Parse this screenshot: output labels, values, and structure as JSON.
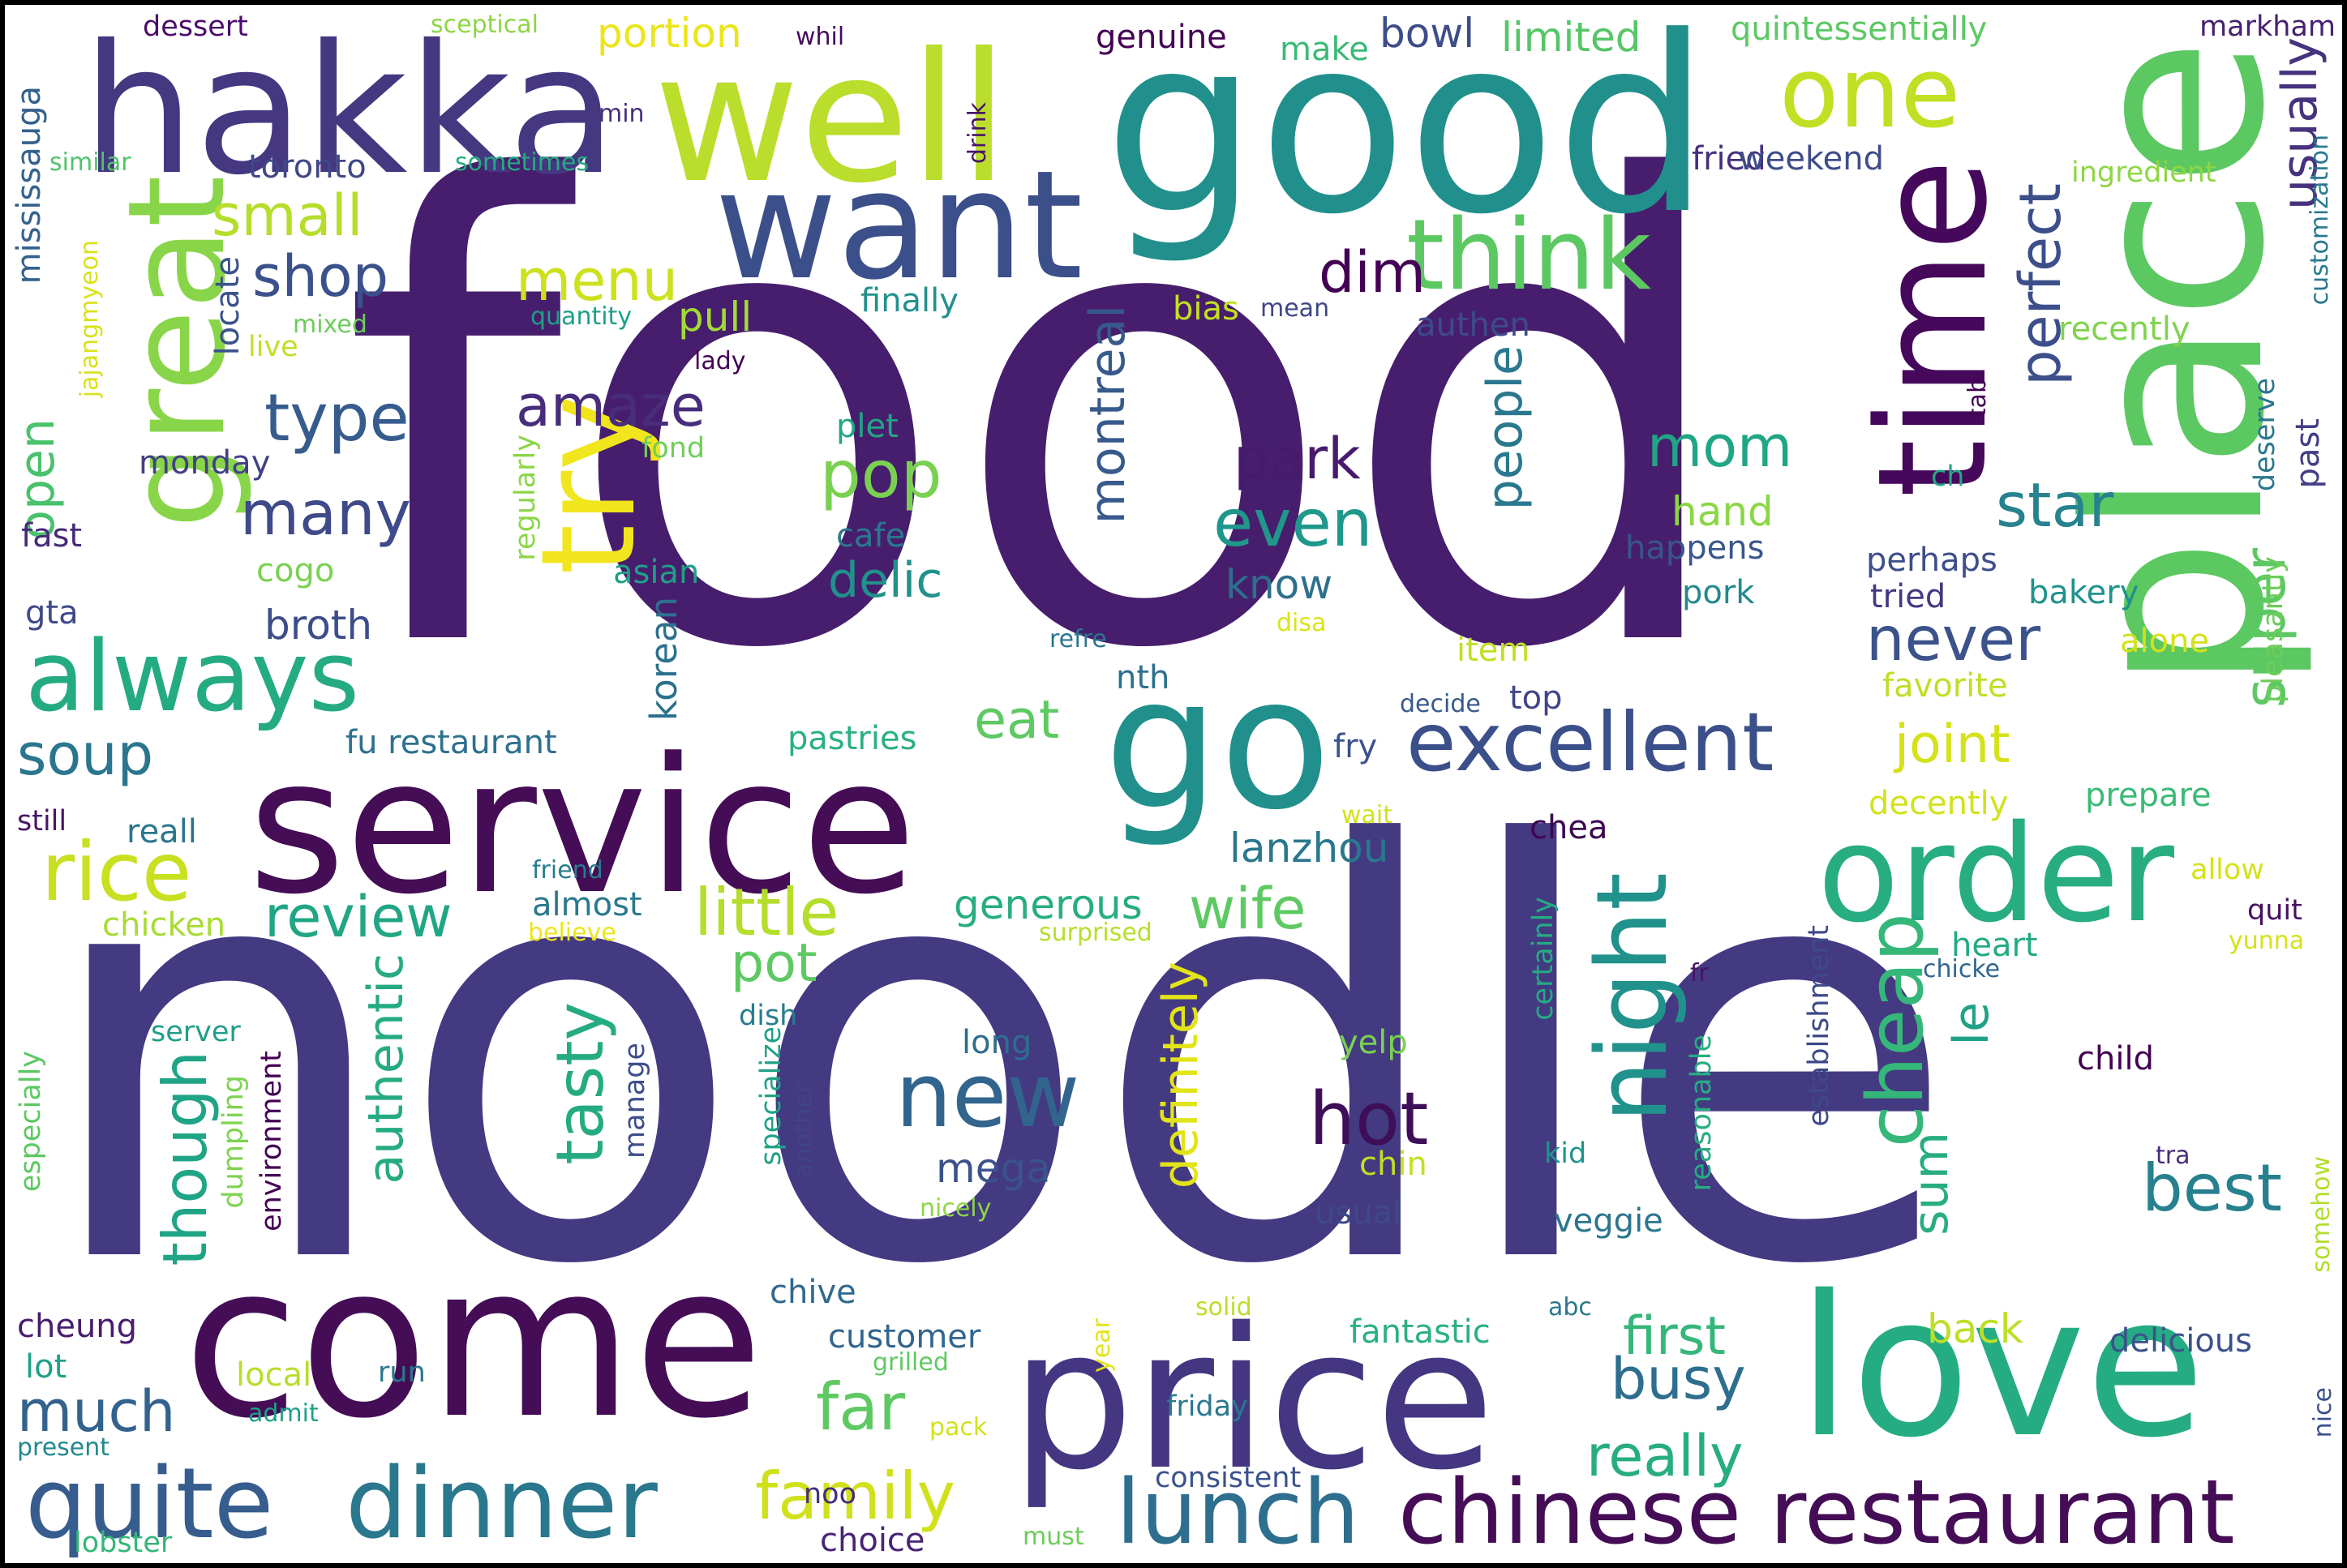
{
  "words": [
    {
      "text": "food",
      "color": "#471e6d"
    },
    {
      "text": "noodle",
      "color": "#433a82"
    },
    {
      "text": "good",
      "color": "#21908c"
    },
    {
      "text": "place",
      "color": "#5cc862"
    },
    {
      "text": "service",
      "color": "#440d56"
    },
    {
      "text": "come",
      "color": "#440d56"
    },
    {
      "text": "price",
      "color": "#453681"
    },
    {
      "text": "love",
      "color": "#25ac82"
    },
    {
      "text": "hakka",
      "color": "#453881"
    },
    {
      "text": "well",
      "color": "#bbde2c"
    },
    {
      "text": "want",
      "color": "#3b4f8a"
    },
    {
      "text": "go",
      "color": "#21908c"
    },
    {
      "text": "time",
      "color": "#45085b"
    },
    {
      "text": "order",
      "color": "#27ad81"
    },
    {
      "text": "great",
      "color": "#89d549"
    },
    {
      "text": "try",
      "color": "#f1e51d"
    },
    {
      "text": "dinner",
      "color": "#2a788e"
    },
    {
      "text": "quite",
      "color": "#365d8d"
    },
    {
      "text": "chinese restaurant",
      "color": "#440d56"
    },
    {
      "text": "night",
      "color": "#21918c"
    },
    {
      "text": "excellent",
      "color": "#3b4f8a"
    },
    {
      "text": "think",
      "color": "#5cc862"
    },
    {
      "text": "one",
      "color": "#c2df23"
    },
    {
      "text": "always",
      "color": "#25ab82"
    },
    {
      "text": "new",
      "color": "#32658e"
    },
    {
      "text": "lunch",
      "color": "#2e6e8e"
    },
    {
      "text": "rice",
      "color": "#c8e020"
    },
    {
      "text": "cheap",
      "color": "#35b779"
    },
    {
      "text": "hot",
      "color": "#3f0e58"
    },
    {
      "text": "best",
      "color": "#27808e"
    },
    {
      "text": "little",
      "color": "#b4dd2c"
    },
    {
      "text": "family",
      "color": "#d0e11c"
    },
    {
      "text": "really",
      "color": "#27ad81"
    },
    {
      "text": "busy",
      "color": "#2e6e8e"
    },
    {
      "text": "far",
      "color": "#5ec962"
    },
    {
      "text": "review",
      "color": "#21a685"
    },
    {
      "text": "wife",
      "color": "#5ec962"
    },
    {
      "text": "tasty",
      "color": "#25ab82"
    },
    {
      "text": "definitely",
      "color": "#e2e418"
    },
    {
      "text": "though",
      "color": "#20a486"
    },
    {
      "text": "authentic",
      "color": "#25ab82"
    },
    {
      "text": "much",
      "color": "#33638d"
    },
    {
      "text": "soup",
      "color": "#2a768e"
    },
    {
      "text": "small",
      "color": "#b5de2b"
    },
    {
      "text": "shop",
      "color": "#3b518b"
    },
    {
      "text": "type",
      "color": "#365c8d"
    },
    {
      "text": "many",
      "color": "#3e4a89"
    },
    {
      "text": "amaze",
      "color": "#472d7b"
    },
    {
      "text": "menu",
      "color": "#cde11d"
    },
    {
      "text": "pop",
      "color": "#7ad151"
    },
    {
      "text": "delic",
      "color": "#21918c"
    },
    {
      "text": "park",
      "color": "#481a6c"
    },
    {
      "text": "even",
      "color": "#1f988b"
    },
    {
      "text": "mom",
      "color": "#21a685"
    },
    {
      "text": "dim",
      "color": "#440154"
    },
    {
      "text": "star",
      "color": "#26828e"
    },
    {
      "text": "never",
      "color": "#3b528b"
    },
    {
      "text": "perfect",
      "color": "#3c4f8a"
    },
    {
      "text": "usually",
      "color": "#46327e"
    },
    {
      "text": "super",
      "color": "#5cc863"
    },
    {
      "text": "joint",
      "color": "#d5e21a"
    },
    {
      "text": "eat",
      "color": "#5ec962"
    },
    {
      "text": "pot",
      "color": "#5ec962"
    },
    {
      "text": "montreal",
      "color": "#38598c"
    },
    {
      "text": "people",
      "color": "#2a788e"
    },
    {
      "text": "first",
      "color": "#35b779"
    },
    {
      "text": "sum",
      "color": "#27ad81"
    },
    {
      "text": "le",
      "color": "#1fa287"
    },
    {
      "text": "mega",
      "color": "#3b528b"
    },
    {
      "text": "generous",
      "color": "#27ad81"
    },
    {
      "text": "korean",
      "color": "#2c718e"
    },
    {
      "text": "broth",
      "color": "#3d4d8a"
    },
    {
      "text": "open",
      "color": "#4ac16d"
    },
    {
      "text": "lanzhou",
      "color": "#2a778e"
    },
    {
      "text": "know",
      "color": "#2d708e"
    },
    {
      "text": "hand",
      "color": "#8bd646"
    },
    {
      "text": "back",
      "color": "#bddf26"
    },
    {
      "text": "pull",
      "color": "#a2da37"
    },
    {
      "text": "bowl",
      "color": "#3e4c8a"
    },
    {
      "text": "portion",
      "color": "#ece51b"
    },
    {
      "text": "limited",
      "color": "#55c667"
    },
    {
      "text": "genuine",
      "color": "#440154"
    },
    {
      "text": "fried",
      "color": "#472f7d"
    },
    {
      "text": "weekend",
      "color": "#3e4c8a"
    },
    {
      "text": "quintessentially",
      "color": "#5cc863"
    },
    {
      "text": "markham",
      "color": "#482071"
    },
    {
      "text": "dessert",
      "color": "#4b0c6b"
    },
    {
      "text": "sceptical",
      "color": "#8ed645"
    },
    {
      "text": "whil",
      "color": "#460b5e"
    },
    {
      "text": "make",
      "color": "#3aba76"
    },
    {
      "text": "toronto",
      "color": "#3f4788"
    },
    {
      "text": "sometimes",
      "color": "#25ab82"
    },
    {
      "text": "similar",
      "color": "#50c46a"
    },
    {
      "text": "min",
      "color": "#472f7d"
    },
    {
      "text": "drink",
      "color": "#481467"
    },
    {
      "text": "ingredient",
      "color": "#8ed645"
    },
    {
      "text": "mississauga",
      "color": "#34618d"
    },
    {
      "text": "customization",
      "color": "#29798e"
    },
    {
      "text": "recently",
      "color": "#7fd34e"
    },
    {
      "text": "tab",
      "color": "#440154"
    },
    {
      "text": "past",
      "color": "#433e85"
    },
    {
      "text": "deserve",
      "color": "#2a778e"
    },
    {
      "text": "jajangmyeon",
      "color": "#d8e219"
    },
    {
      "text": "mixed",
      "color": "#6ccd5a"
    },
    {
      "text": "live",
      "color": "#c0df25"
    },
    {
      "text": "locate",
      "color": "#3b528b"
    },
    {
      "text": "quantity",
      "color": "#1f9f88"
    },
    {
      "text": "finally",
      "color": "#21918c"
    },
    {
      "text": "bias",
      "color": "#c5e021"
    },
    {
      "text": "mean",
      "color": "#404688"
    },
    {
      "text": "authen",
      "color": "#3e4a89"
    },
    {
      "text": "lady",
      "color": "#440154"
    },
    {
      "text": "plet",
      "color": "#21a585"
    },
    {
      "text": "fond",
      "color": "#70cf57"
    },
    {
      "text": "regularly",
      "color": "#8bd646"
    },
    {
      "text": "monday",
      "color": "#424086"
    },
    {
      "text": "fast",
      "color": "#482979"
    },
    {
      "text": "cogo",
      "color": "#7ad151"
    },
    {
      "text": "gta",
      "color": "#3e4a89"
    },
    {
      "text": "cafe",
      "color": "#2a788e"
    },
    {
      "text": "asian",
      "color": "#1fa088"
    },
    {
      "text": "refre",
      "color": "#2b758e"
    },
    {
      "text": "disa",
      "color": "#dae319"
    },
    {
      "text": "nth",
      "color": "#2d708e"
    },
    {
      "text": "item",
      "color": "#c0df25"
    },
    {
      "text": "decide",
      "color": "#38598c"
    },
    {
      "text": "top",
      "color": "#404588"
    },
    {
      "text": "happens",
      "color": "#39568c"
    },
    {
      "text": "pork",
      "color": "#23898e"
    },
    {
      "text": "ch",
      "color": "#22a785"
    },
    {
      "text": "perhaps",
      "color": "#3d4e8a"
    },
    {
      "text": "tried",
      "color": "#453781"
    },
    {
      "text": "bakery",
      "color": "#20928c"
    },
    {
      "text": "alone",
      "color": "#d2e21b"
    },
    {
      "text": "favorite",
      "color": "#bddf26"
    },
    {
      "text": "pleasantly",
      "color": "#6ccd5a"
    },
    {
      "text": "fu restaurant",
      "color": "#2d718e"
    },
    {
      "text": "pastries",
      "color": "#2ab07f"
    },
    {
      "text": "fry",
      "color": "#3b528b"
    },
    {
      "text": "wait",
      "color": "#d2e21b"
    },
    {
      "text": "decently",
      "color": "#d2e21b"
    },
    {
      "text": "prepare",
      "color": "#3aba76"
    },
    {
      "text": "chea",
      "color": "#3e0751"
    },
    {
      "text": "still",
      "color": "#481467"
    },
    {
      "text": "reall",
      "color": "#2b748e"
    },
    {
      "text": "friend",
      "color": "#287c8e"
    },
    {
      "text": "almost",
      "color": "#2a788e"
    },
    {
      "text": "chicken",
      "color": "#a8db34"
    },
    {
      "text": "believe",
      "color": "#ece51b"
    },
    {
      "text": "surprised",
      "color": "#b8de29"
    },
    {
      "text": "allow",
      "color": "#d5e21a"
    },
    {
      "text": "quit",
      "color": "#471063"
    },
    {
      "text": "yunna",
      "color": "#d5e21a"
    },
    {
      "text": "heart",
      "color": "#24aa83"
    },
    {
      "text": "chicke",
      "color": "#31668e"
    },
    {
      "text": "fr",
      "color": "#471164"
    },
    {
      "text": "child",
      "color": "#440154"
    },
    {
      "text": "certainly",
      "color": "#25ab82"
    },
    {
      "text": "establishment",
      "color": "#3e4989"
    },
    {
      "text": "server",
      "color": "#1f9e89"
    },
    {
      "text": "especially",
      "color": "#5cc862"
    },
    {
      "text": "dumpling",
      "color": "#7ed34f"
    },
    {
      "text": "environment",
      "color": "#440154"
    },
    {
      "text": "manage",
      "color": "#3d4e8a"
    },
    {
      "text": "dish",
      "color": "#287c8e"
    },
    {
      "text": "specialize",
      "color": "#1fa287"
    },
    {
      "text": "another",
      "color": "#414487"
    },
    {
      "text": "long",
      "color": "#2e6e8e"
    },
    {
      "text": "yelp",
      "color": "#7ad151"
    },
    {
      "text": "chin",
      "color": "#c2df23"
    },
    {
      "text": "nicely",
      "color": "#8ed645"
    },
    {
      "text": "usual",
      "color": "#3e4989"
    },
    {
      "text": "kid",
      "color": "#1f958b"
    },
    {
      "text": "reasonable",
      "color": "#26ad81"
    },
    {
      "text": "veggie",
      "color": "#2b758e"
    },
    {
      "text": "tra",
      "color": "#472d7b"
    },
    {
      "text": "somehow",
      "color": "#b2dd2d"
    },
    {
      "text": "chive",
      "color": "#31688e"
    },
    {
      "text": "cheung",
      "color": "#481c6e"
    },
    {
      "text": "customer",
      "color": "#32658e"
    },
    {
      "text": "solid",
      "color": "#bade28"
    },
    {
      "text": "abc",
      "color": "#2a788e"
    },
    {
      "text": "fantastic",
      "color": "#2ab07f"
    },
    {
      "text": "delicious",
      "color": "#3b528b"
    },
    {
      "text": "year",
      "color": "#e2e418"
    },
    {
      "text": "grilled",
      "color": "#5ec962"
    },
    {
      "text": "lot",
      "color": "#1fa088"
    },
    {
      "text": "local",
      "color": "#b8de29"
    },
    {
      "text": "run",
      "color": "#2a788e"
    },
    {
      "text": "admit",
      "color": "#1f9f88"
    },
    {
      "text": "friday",
      "color": "#29798e"
    },
    {
      "text": "nice",
      "color": "#3c508b"
    },
    {
      "text": "present",
      "color": "#23898e"
    },
    {
      "text": "pack",
      "color": "#d2e21b"
    },
    {
      "text": "noo",
      "color": "#472d7b"
    },
    {
      "text": "consistent",
      "color": "#3a538b"
    },
    {
      "text": "lobster",
      "color": "#34b679"
    },
    {
      "text": "choice",
      "color": "#482475"
    },
    {
      "text": "must",
      "color": "#6ccd5a"
    }
  ]
}
